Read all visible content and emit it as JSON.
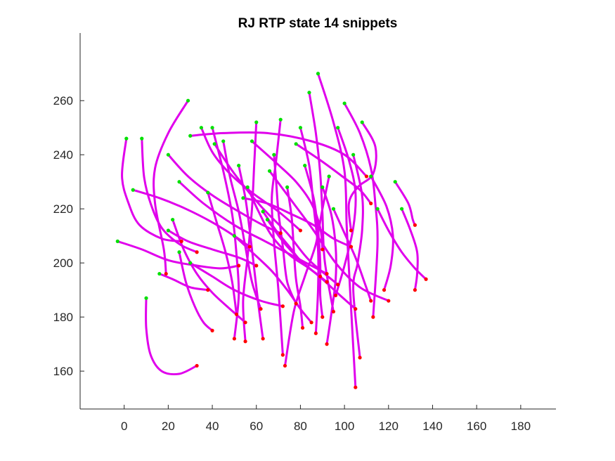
{
  "chart_data": {
    "type": "line",
    "title": "RJ  RTP state 14 snippets",
    "xlabel": "",
    "ylabel": "",
    "xlim": [
      -20,
      196
    ],
    "ylim": [
      146,
      285
    ],
    "xticks": [
      0,
      20,
      40,
      60,
      80,
      100,
      120,
      140,
      160,
      180
    ],
    "yticks": [
      160,
      180,
      200,
      220,
      240,
      260
    ],
    "grid": false,
    "legend": "none",
    "colors": {
      "trace": "#e000ec",
      "start_marker": "#00e000",
      "end_marker": "#ff0000"
    },
    "series": [
      {
        "points": [
          [
            1,
            246
          ],
          [
            -1,
            232
          ],
          [
            2,
            222
          ],
          [
            7,
            214
          ],
          [
            17,
            209
          ],
          [
            26,
            208
          ]
        ]
      },
      {
        "points": [
          [
            8,
            246
          ],
          [
            9,
            232
          ],
          [
            12,
            222
          ],
          [
            17,
            213
          ],
          [
            25,
            207
          ],
          [
            33,
            204
          ]
        ]
      },
      {
        "points": [
          [
            10,
            187
          ],
          [
            10,
            176
          ],
          [
            12,
            166
          ],
          [
            17,
            160
          ],
          [
            25,
            159
          ],
          [
            33,
            162
          ]
        ]
      },
      {
        "points": [
          [
            -3,
            208
          ],
          [
            8,
            205
          ],
          [
            20,
            201
          ],
          [
            33,
            199
          ],
          [
            44,
            198
          ],
          [
            52,
            199
          ]
        ]
      },
      {
        "points": [
          [
            4,
            227
          ],
          [
            16,
            224
          ],
          [
            28,
            220
          ],
          [
            40,
            215
          ],
          [
            50,
            210
          ],
          [
            57,
            206
          ]
        ]
      },
      {
        "points": [
          [
            29,
            260
          ],
          [
            20,
            248
          ],
          [
            14,
            235
          ],
          [
            14,
            222
          ],
          [
            18,
            205
          ],
          [
            19,
            196
          ]
        ]
      },
      {
        "points": [
          [
            88,
            270
          ],
          [
            95,
            252
          ],
          [
            100,
            234
          ],
          [
            101,
            214
          ],
          [
            102,
            198
          ],
          [
            105,
            154
          ]
        ]
      },
      {
        "points": [
          [
            126,
            220
          ],
          [
            130,
            212
          ],
          [
            133,
            204
          ],
          [
            133,
            196
          ],
          [
            132,
            190
          ]
        ]
      },
      {
        "points": [
          [
            123,
            230
          ],
          [
            129,
            222
          ],
          [
            131,
            216
          ],
          [
            132,
            214
          ]
        ]
      },
      {
        "points": [
          [
            25,
            204
          ],
          [
            28,
            193
          ],
          [
            32,
            184
          ],
          [
            36,
            178
          ],
          [
            40,
            175
          ]
        ]
      },
      {
        "points": [
          [
            60,
            252
          ],
          [
            59,
            236
          ],
          [
            58,
            220
          ],
          [
            56,
            202
          ],
          [
            54,
            186
          ],
          [
            55,
            171
          ]
        ]
      },
      {
        "points": [
          [
            100,
            259
          ],
          [
            107,
            248
          ],
          [
            112,
            235
          ],
          [
            114,
            222
          ],
          [
            115,
            207
          ],
          [
            113,
            180
          ]
        ]
      },
      {
        "points": [
          [
            104,
            240
          ],
          [
            108,
            225
          ],
          [
            108,
            212
          ],
          [
            106,
            200
          ],
          [
            104,
            190
          ],
          [
            107,
            165
          ]
        ]
      },
      {
        "points": [
          [
            30,
            247
          ],
          [
            45,
            248
          ],
          [
            65,
            248
          ],
          [
            85,
            245
          ],
          [
            100,
            240
          ],
          [
            110,
            232
          ]
        ]
      },
      {
        "points": [
          [
            40,
            250
          ],
          [
            45,
            234
          ],
          [
            49,
            218
          ],
          [
            51,
            203
          ],
          [
            52,
            188
          ],
          [
            50,
            172
          ]
        ]
      },
      {
        "points": [
          [
            71,
            253
          ],
          [
            69,
            238
          ],
          [
            67,
            224
          ],
          [
            68,
            208
          ],
          [
            70,
            190
          ],
          [
            72,
            166
          ]
        ]
      },
      {
        "points": [
          [
            80,
            250
          ],
          [
            84,
            236
          ],
          [
            86,
            221
          ],
          [
            88,
            205
          ],
          [
            88,
            190
          ],
          [
            87,
            174
          ]
        ]
      },
      {
        "points": [
          [
            66,
            234
          ],
          [
            76,
            223
          ],
          [
            86,
            212
          ],
          [
            96,
            200
          ],
          [
            107,
            191
          ],
          [
            120,
            186
          ]
        ]
      },
      {
        "points": [
          [
            115,
            220
          ],
          [
            120,
            212
          ],
          [
            126,
            204
          ],
          [
            132,
            198
          ],
          [
            137,
            194
          ]
        ]
      },
      {
        "points": [
          [
            35,
            250
          ],
          [
            40,
            241
          ],
          [
            48,
            233
          ],
          [
            58,
            226
          ],
          [
            70,
            219
          ],
          [
            80,
            212
          ]
        ]
      },
      {
        "points": [
          [
            108,
            252
          ],
          [
            114,
            243
          ],
          [
            113,
            233
          ],
          [
            106,
            228
          ],
          [
            102,
            222
          ],
          [
            103,
            212
          ]
        ]
      },
      {
        "points": [
          [
            25,
            230
          ],
          [
            36,
            222
          ],
          [
            50,
            214
          ],
          [
            64,
            208
          ],
          [
            78,
            202
          ],
          [
            92,
            196
          ]
        ]
      },
      {
        "points": [
          [
            41,
            244
          ],
          [
            50,
            233
          ],
          [
            62,
            221
          ],
          [
            74,
            211
          ],
          [
            84,
            201
          ],
          [
            97,
            192
          ]
        ]
      },
      {
        "points": [
          [
            52,
            236
          ],
          [
            55,
            224
          ],
          [
            57,
            212
          ],
          [
            59,
            198
          ],
          [
            61,
            184
          ],
          [
            63,
            172
          ]
        ]
      },
      {
        "points": [
          [
            93,
            232
          ],
          [
            90,
            220
          ],
          [
            87,
            207
          ],
          [
            82,
            195
          ],
          [
            77,
            182
          ],
          [
            73,
            162
          ]
        ]
      },
      {
        "points": [
          [
            20,
            212
          ],
          [
            29,
            208
          ],
          [
            40,
            205
          ],
          [
            52,
            202
          ],
          [
            60,
            199
          ]
        ]
      },
      {
        "points": [
          [
            56,
            228
          ],
          [
            61,
            219
          ],
          [
            67,
            210
          ],
          [
            75,
            203
          ],
          [
            84,
            198
          ],
          [
            92,
            193
          ]
        ]
      },
      {
        "points": [
          [
            63,
            219
          ],
          [
            69,
            212
          ],
          [
            75,
            206
          ],
          [
            81,
            200
          ],
          [
            89,
            195
          ]
        ]
      },
      {
        "points": [
          [
            90,
            228
          ],
          [
            94,
            218
          ],
          [
            96,
            206
          ],
          [
            96,
            194
          ],
          [
            94,
            181
          ],
          [
            92,
            170
          ]
        ]
      },
      {
        "points": [
          [
            84,
            263
          ],
          [
            87,
            248
          ],
          [
            89,
            233
          ],
          [
            90,
            218
          ],
          [
            91,
            201
          ],
          [
            95,
            182
          ]
        ]
      },
      {
        "points": [
          [
            58,
            245
          ],
          [
            69,
            237
          ],
          [
            78,
            230
          ],
          [
            85,
            222
          ],
          [
            89,
            213
          ],
          [
            90,
            205
          ]
        ]
      },
      {
        "points": [
          [
            45,
            245
          ],
          [
            48,
            232
          ],
          [
            52,
            219
          ],
          [
            55,
            206
          ],
          [
            58,
            193
          ],
          [
            62,
            183
          ]
        ]
      },
      {
        "points": [
          [
            68,
            240
          ],
          [
            69,
            230
          ],
          [
            70,
            219
          ],
          [
            72,
            206
          ],
          [
            74,
            193
          ],
          [
            78,
            185
          ]
        ]
      },
      {
        "points": [
          [
            20,
            240
          ],
          [
            29,
            232
          ],
          [
            40,
            225
          ],
          [
            52,
            219
          ],
          [
            63,
            214
          ],
          [
            71,
            211
          ]
        ]
      },
      {
        "points": [
          [
            22,
            216
          ],
          [
            27,
            205
          ],
          [
            33,
            196
          ],
          [
            40,
            189
          ],
          [
            48,
            183
          ],
          [
            55,
            178
          ]
        ]
      },
      {
        "points": [
          [
            78,
            244
          ],
          [
            89,
            238
          ],
          [
            99,
            232
          ],
          [
            107,
            227
          ],
          [
            112,
            222
          ]
        ]
      },
      {
        "points": [
          [
            95,
            220
          ],
          [
            100,
            211
          ],
          [
            105,
            202
          ],
          [
            109,
            193
          ],
          [
            112,
            186
          ]
        ]
      },
      {
        "points": [
          [
            65,
            216
          ],
          [
            72,
            208
          ],
          [
            80,
            201
          ],
          [
            90,
            194
          ],
          [
            98,
            188
          ],
          [
            105,
            183
          ]
        ]
      },
      {
        "points": [
          [
            16,
            196
          ],
          [
            22,
            194
          ],
          [
            30,
            191
          ],
          [
            38,
            190
          ]
        ]
      },
      {
        "points": [
          [
            74,
            228
          ],
          [
            76,
            217
          ],
          [
            77,
            205
          ],
          [
            78,
            194
          ],
          [
            80,
            184
          ],
          [
            81,
            176
          ]
        ]
      },
      {
        "points": [
          [
            97,
            250
          ],
          [
            102,
            238
          ],
          [
            105,
            226
          ],
          [
            104,
            213
          ],
          [
            100,
            199
          ],
          [
            96,
            188
          ]
        ]
      },
      {
        "points": [
          [
            30,
            200
          ],
          [
            40,
            195
          ],
          [
            50,
            190
          ],
          [
            62,
            186
          ],
          [
            72,
            184
          ]
        ]
      },
      {
        "points": [
          [
            54,
            224
          ],
          [
            65,
            222
          ],
          [
            76,
            218
          ],
          [
            86,
            214
          ],
          [
            95,
            209
          ],
          [
            103,
            206
          ]
        ]
      },
      {
        "points": [
          [
            38,
            226
          ],
          [
            42,
            215
          ],
          [
            46,
            204
          ],
          [
            49,
            193
          ],
          [
            51,
            181
          ]
        ]
      },
      {
        "points": [
          [
            112,
            232
          ],
          [
            119,
            221
          ],
          [
            122,
            210
          ],
          [
            121,
            199
          ],
          [
            118,
            190
          ]
        ]
      },
      {
        "points": [
          [
            50,
            210
          ],
          [
            58,
            204
          ],
          [
            67,
            197
          ],
          [
            74,
            190
          ],
          [
            80,
            183
          ],
          [
            85,
            178
          ]
        ]
      },
      {
        "points": [
          [
            82,
            236
          ],
          [
            86,
            224
          ],
          [
            88,
            212
          ],
          [
            89,
            200
          ],
          [
            89,
            188
          ],
          [
            90,
            180
          ]
        ]
      }
    ]
  }
}
